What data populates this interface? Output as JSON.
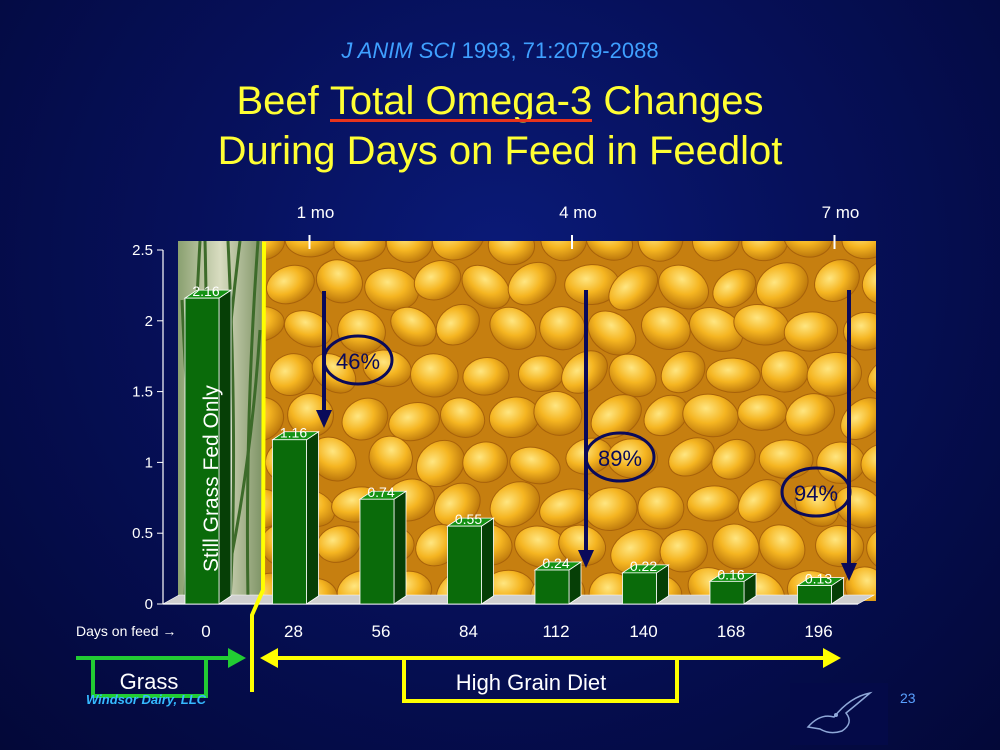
{
  "citation": {
    "journal": "J ANIM SCI",
    "details": " 1993, 71:2079-2088"
  },
  "title": {
    "line1_pre": "Beef ",
    "line1_highlight": "Total Omega-3",
    "line1_post": " Changes",
    "line2": "During Days on Feed in Feedlot"
  },
  "month_markers": [
    {
      "label": "1 mo",
      "day": 28
    },
    {
      "label": "4 mo",
      "day": 112
    },
    {
      "label": "7 mo",
      "day": 196
    }
  ],
  "grass_bar_text": "Still  Grass  Fed  Only",
  "days_on_feed_label": "Days on feed →",
  "percent_labels": [
    {
      "text": "46%",
      "day": 28
    },
    {
      "text": "89%",
      "day": 112
    },
    {
      "text": "94%",
      "day": 196
    }
  ],
  "diet_labels": {
    "grass": "Grass",
    "grain": "High  Grain  Diet"
  },
  "footer": {
    "credit": "Windsor Dairy, LLC",
    "slide_number": "23"
  },
  "colors": {
    "bar": "#0a6b0a",
    "title": "#ffff33",
    "citation": "#3fa0ff",
    "arrow": "#0a0a5a",
    "grass_arrow": "#22cc33",
    "grain_arrow": "#ffff00"
  },
  "chart_data": {
    "type": "bar",
    "categories": [
      "0",
      "28",
      "56",
      "84",
      "112",
      "140",
      "168",
      "196"
    ],
    "values": [
      2.16,
      1.16,
      0.74,
      0.55,
      0.24,
      0.22,
      0.16,
      0.13
    ],
    "value_labels": [
      "2.16",
      "1.16",
      "0.74",
      "0.55",
      "0.24",
      "0.22",
      "0.16",
      "0.13"
    ],
    "ylim": [
      0,
      2.5
    ],
    "yticks": [
      "0",
      "0.5",
      "1",
      "1.5",
      "2",
      "2.5"
    ],
    "ytick_values": [
      0,
      0.5,
      1,
      1.5,
      2,
      2.5
    ],
    "grid": false
  }
}
